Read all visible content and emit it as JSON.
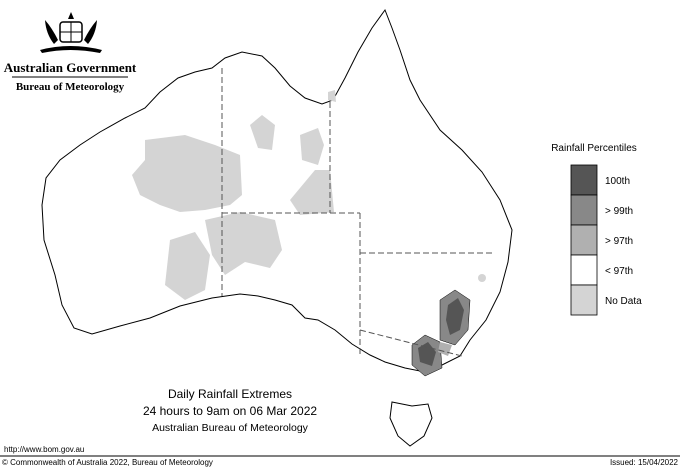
{
  "header": {
    "government": "Australian Government",
    "agency": "Bureau of Meteorology"
  },
  "legend": {
    "title": "Rainfall Percentiles",
    "items": [
      {
        "label": "100th",
        "color": "#555555"
      },
      {
        "label": "> 99th",
        "color": "#888888"
      },
      {
        "label": "> 97th",
        "color": "#b0b0b0"
      },
      {
        "label": "< 97th",
        "color": "#ffffff"
      },
      {
        "label": "No Data",
        "color": "#d4d4d4"
      }
    ]
  },
  "map_title": {
    "line1": "Daily Rainfall Extremes",
    "line2": "24 hours to 9am on 06 Mar 2022",
    "line3": "Australian Bureau of Meteorology"
  },
  "footer": {
    "url": "http://www.bom.gov.au",
    "copyright": "© Commonwealth of Australia 2022, Bureau of Meteorology",
    "issued": "Issued: 15/04/2022"
  }
}
